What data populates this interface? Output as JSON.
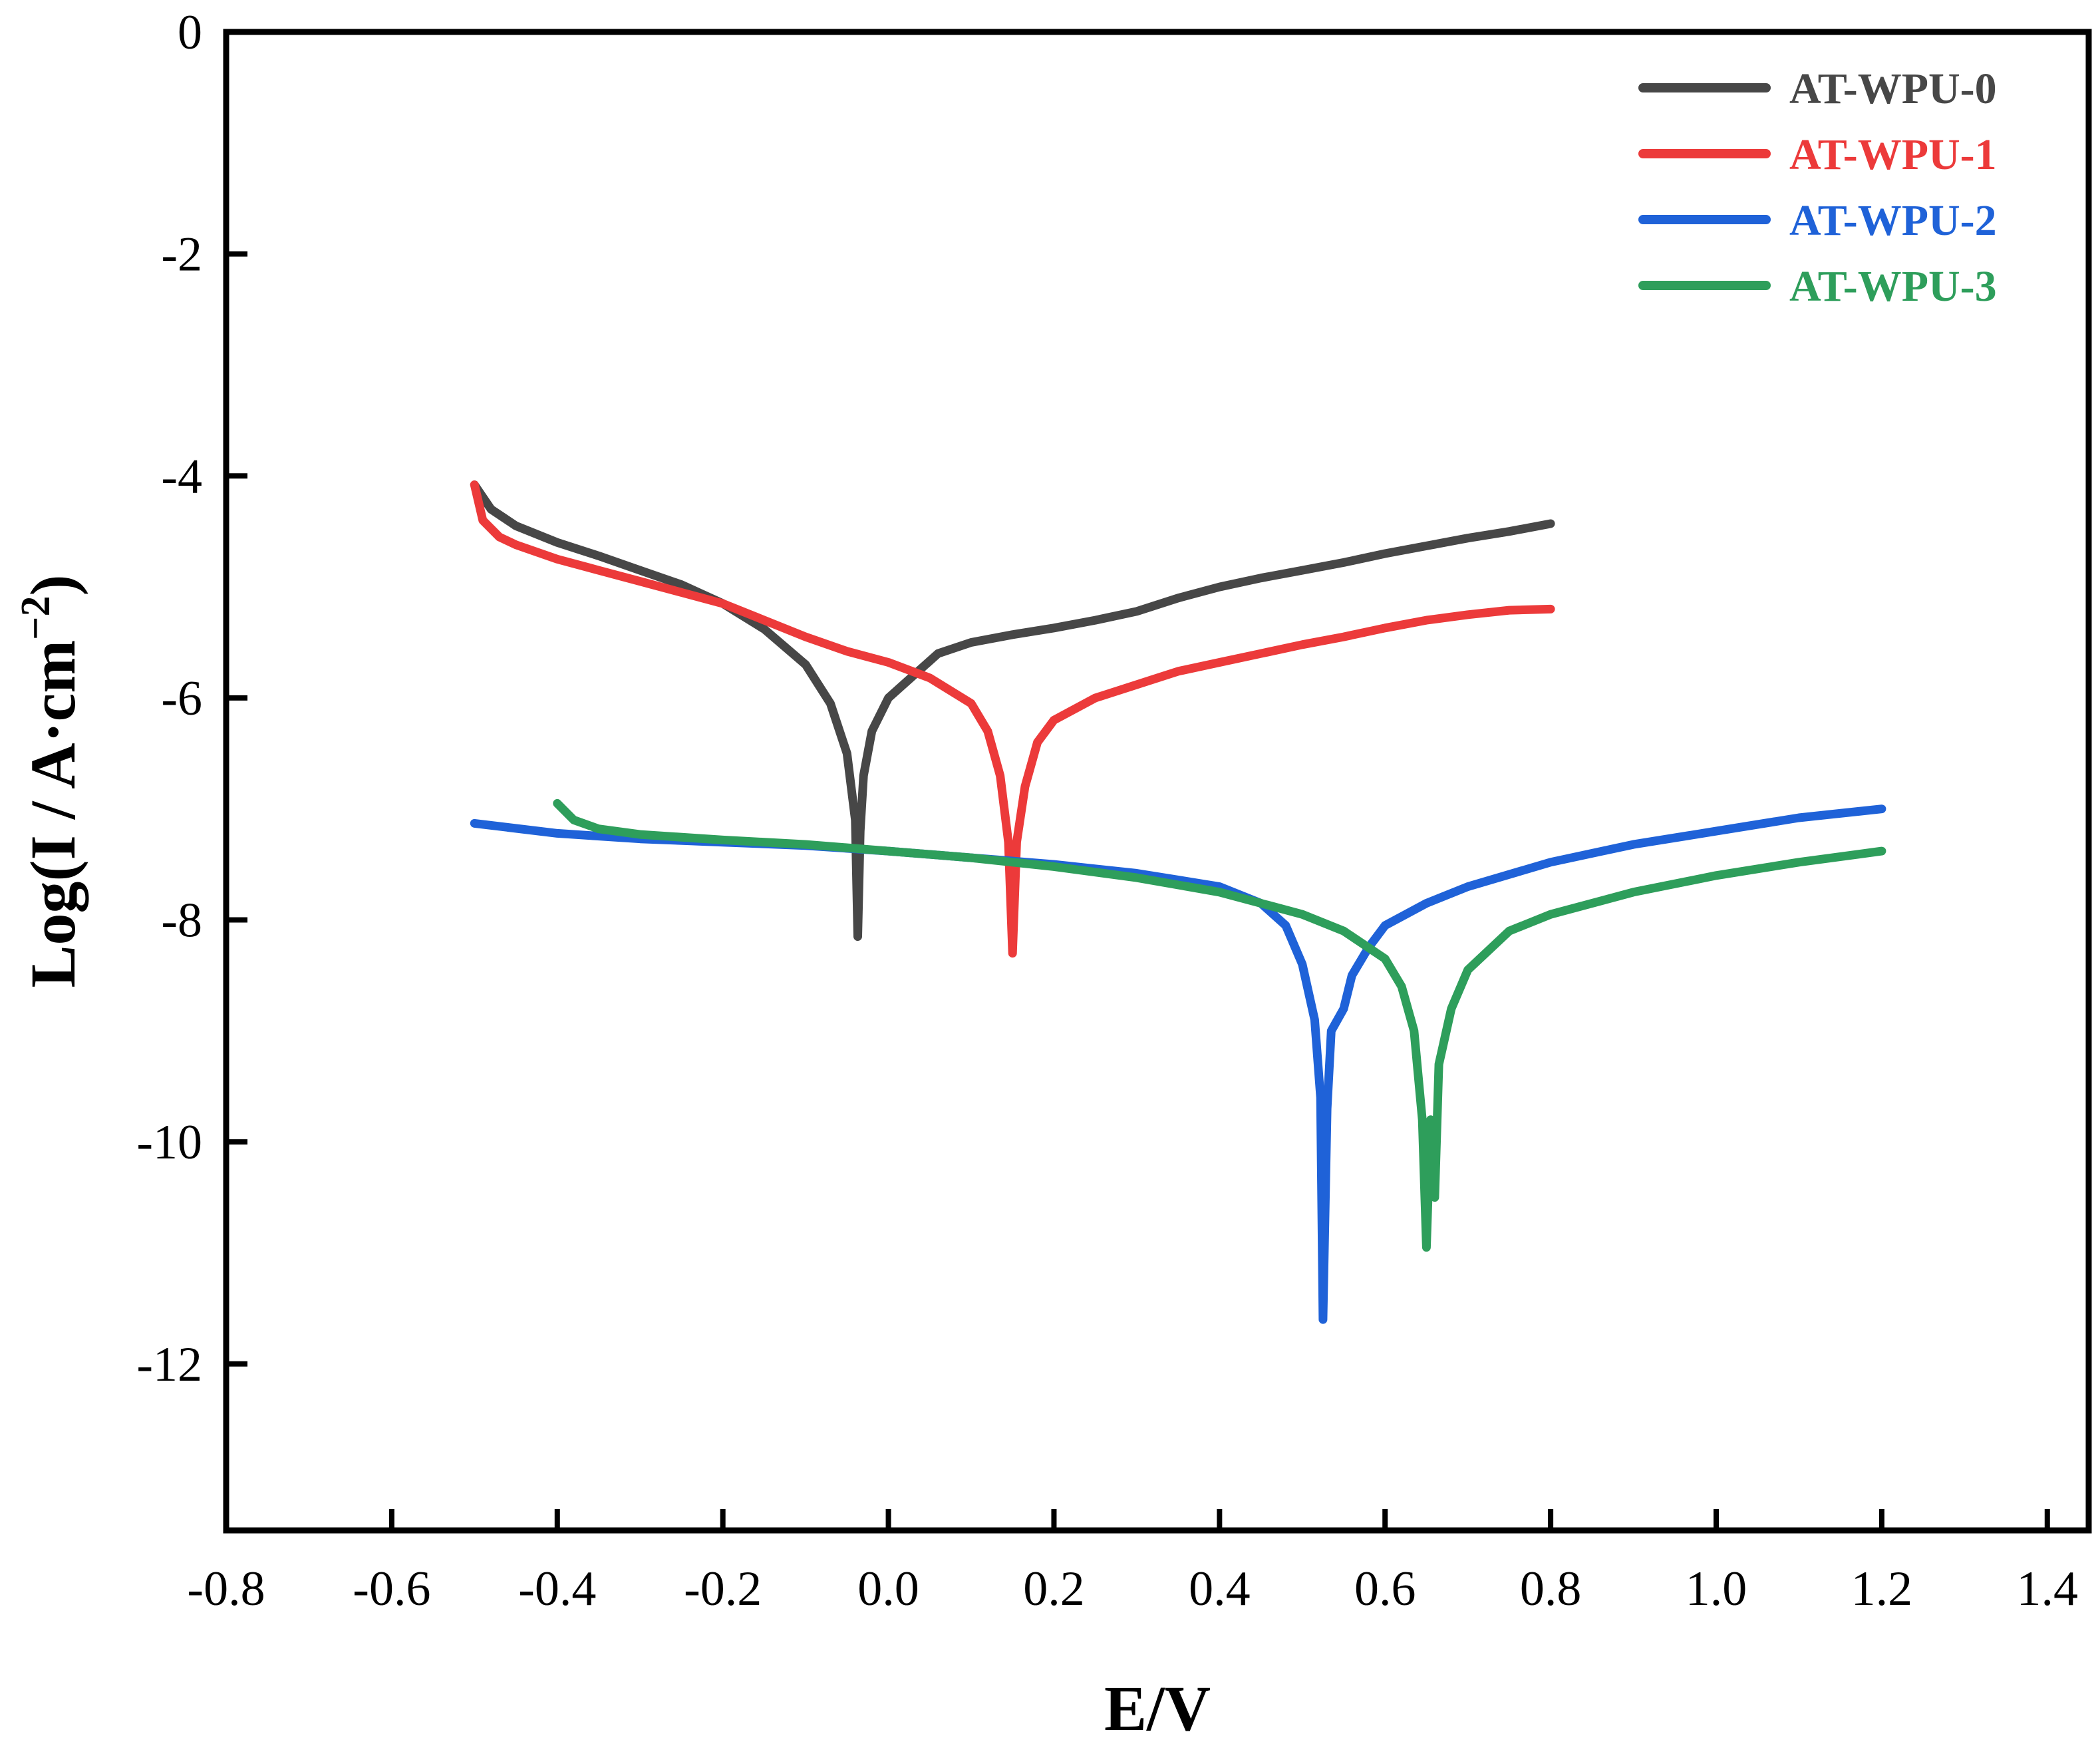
{
  "chart_data": {
    "type": "line",
    "title": "",
    "xlabel": "E/V",
    "ylabel_parts": {
      "main": "Log(I / A·cm",
      "superscript": "−2",
      "close": ")"
    },
    "xlim": [
      -0.8,
      1.45
    ],
    "ylim": [
      -13.5,
      0
    ],
    "x_ticks": [
      -0.8,
      -0.6,
      -0.4,
      -0.2,
      0.0,
      0.2,
      0.4,
      0.6,
      0.8,
      1.0,
      1.2,
      1.4
    ],
    "x_tick_labels": [
      "-0.8",
      "-0.6",
      "-0.4",
      "-0.2",
      "0.0",
      "0.2",
      "0.4",
      "0.6",
      "0.8",
      "1.0",
      "1.2",
      "1.4"
    ],
    "y_ticks": [
      0,
      -2,
      -4,
      -6,
      -8,
      -10,
      -12
    ],
    "y_tick_labels": [
      "0",
      "-2",
      "-4",
      "-6",
      "-8",
      "-10",
      "-12"
    ],
    "legend_position": "top-right",
    "series": [
      {
        "name": "AT-WPU-0",
        "color": "#474747",
        "points": [
          [
            -0.5,
            -4.08
          ],
          [
            -0.48,
            -4.3
          ],
          [
            -0.45,
            -4.45
          ],
          [
            -0.4,
            -4.6
          ],
          [
            -0.35,
            -4.72
          ],
          [
            -0.3,
            -4.85
          ],
          [
            -0.25,
            -4.98
          ],
          [
            -0.2,
            -5.15
          ],
          [
            -0.15,
            -5.38
          ],
          [
            -0.1,
            -5.7
          ],
          [
            -0.07,
            -6.05
          ],
          [
            -0.05,
            -6.5
          ],
          [
            -0.04,
            -7.1
          ],
          [
            -0.037,
            -8.15
          ],
          [
            -0.034,
            -7.2
          ],
          [
            -0.03,
            -6.7
          ],
          [
            -0.02,
            -6.3
          ],
          [
            0.0,
            -6.0
          ],
          [
            0.03,
            -5.8
          ],
          [
            0.06,
            -5.6
          ],
          [
            0.1,
            -5.5
          ],
          [
            0.15,
            -5.43
          ],
          [
            0.2,
            -5.37
          ],
          [
            0.25,
            -5.3
          ],
          [
            0.3,
            -5.22
          ],
          [
            0.35,
            -5.1
          ],
          [
            0.4,
            -5.0
          ],
          [
            0.45,
            -4.92
          ],
          [
            0.5,
            -4.85
          ],
          [
            0.55,
            -4.78
          ],
          [
            0.6,
            -4.7
          ],
          [
            0.65,
            -4.63
          ],
          [
            0.7,
            -4.56
          ],
          [
            0.75,
            -4.5
          ],
          [
            0.8,
            -4.43
          ]
        ]
      },
      {
        "name": "AT-WPU-1",
        "color": "#ec3a3a",
        "points": [
          [
            -0.5,
            -4.08
          ],
          [
            -0.49,
            -4.4
          ],
          [
            -0.47,
            -4.55
          ],
          [
            -0.45,
            -4.62
          ],
          [
            -0.4,
            -4.75
          ],
          [
            -0.35,
            -4.85
          ],
          [
            -0.3,
            -4.95
          ],
          [
            -0.25,
            -5.05
          ],
          [
            -0.2,
            -5.15
          ],
          [
            -0.15,
            -5.3
          ],
          [
            -0.1,
            -5.45
          ],
          [
            -0.05,
            -5.58
          ],
          [
            0.0,
            -5.68
          ],
          [
            0.05,
            -5.82
          ],
          [
            0.1,
            -6.05
          ],
          [
            0.12,
            -6.3
          ],
          [
            0.135,
            -6.7
          ],
          [
            0.145,
            -7.3
          ],
          [
            0.15,
            -8.3
          ],
          [
            0.155,
            -7.3
          ],
          [
            0.165,
            -6.8
          ],
          [
            0.18,
            -6.4
          ],
          [
            0.2,
            -6.2
          ],
          [
            0.25,
            -6.0
          ],
          [
            0.3,
            -5.88
          ],
          [
            0.35,
            -5.76
          ],
          [
            0.4,
            -5.68
          ],
          [
            0.45,
            -5.6
          ],
          [
            0.5,
            -5.52
          ],
          [
            0.55,
            -5.45
          ],
          [
            0.6,
            -5.37
          ],
          [
            0.65,
            -5.3
          ],
          [
            0.7,
            -5.25
          ],
          [
            0.75,
            -5.21
          ],
          [
            0.8,
            -5.2
          ]
        ]
      },
      {
        "name": "AT-WPU-2",
        "color": "#1f62d8",
        "points": [
          [
            -0.5,
            -7.13
          ],
          [
            -0.4,
            -7.22
          ],
          [
            -0.3,
            -7.27
          ],
          [
            -0.2,
            -7.3
          ],
          [
            -0.1,
            -7.33
          ],
          [
            0.0,
            -7.38
          ],
          [
            0.1,
            -7.44
          ],
          [
            0.2,
            -7.5
          ],
          [
            0.3,
            -7.58
          ],
          [
            0.4,
            -7.7
          ],
          [
            0.45,
            -7.85
          ],
          [
            0.48,
            -8.05
          ],
          [
            0.5,
            -8.4
          ],
          [
            0.515,
            -8.9
          ],
          [
            0.522,
            -9.6
          ],
          [
            0.525,
            -11.6
          ],
          [
            0.53,
            -9.7
          ],
          [
            0.535,
            -9.0
          ],
          [
            0.55,
            -8.8
          ],
          [
            0.56,
            -8.5
          ],
          [
            0.58,
            -8.25
          ],
          [
            0.6,
            -8.05
          ],
          [
            0.65,
            -7.85
          ],
          [
            0.7,
            -7.7
          ],
          [
            0.8,
            -7.48
          ],
          [
            0.9,
            -7.32
          ],
          [
            1.0,
            -7.2
          ],
          [
            1.1,
            -7.08
          ],
          [
            1.2,
            -7.0
          ]
        ]
      },
      {
        "name": "AT-WPU-3",
        "color": "#2e9e5b",
        "points": [
          [
            -0.4,
            -6.95
          ],
          [
            -0.38,
            -7.1
          ],
          [
            -0.35,
            -7.18
          ],
          [
            -0.3,
            -7.23
          ],
          [
            -0.2,
            -7.28
          ],
          [
            -0.1,
            -7.32
          ],
          [
            0.0,
            -7.38
          ],
          [
            0.1,
            -7.44
          ],
          [
            0.2,
            -7.52
          ],
          [
            0.3,
            -7.62
          ],
          [
            0.4,
            -7.75
          ],
          [
            0.5,
            -7.95
          ],
          [
            0.55,
            -8.1
          ],
          [
            0.6,
            -8.35
          ],
          [
            0.62,
            -8.6
          ],
          [
            0.635,
            -9.0
          ],
          [
            0.645,
            -9.8
          ],
          [
            0.65,
            -10.95
          ],
          [
            0.655,
            -9.8
          ],
          [
            0.66,
            -10.5
          ],
          [
            0.665,
            -9.3
          ],
          [
            0.68,
            -8.8
          ],
          [
            0.7,
            -8.45
          ],
          [
            0.75,
            -8.1
          ],
          [
            0.8,
            -7.95
          ],
          [
            0.9,
            -7.75
          ],
          [
            1.0,
            -7.6
          ],
          [
            1.1,
            -7.48
          ],
          [
            1.2,
            -7.38
          ]
        ]
      }
    ]
  }
}
